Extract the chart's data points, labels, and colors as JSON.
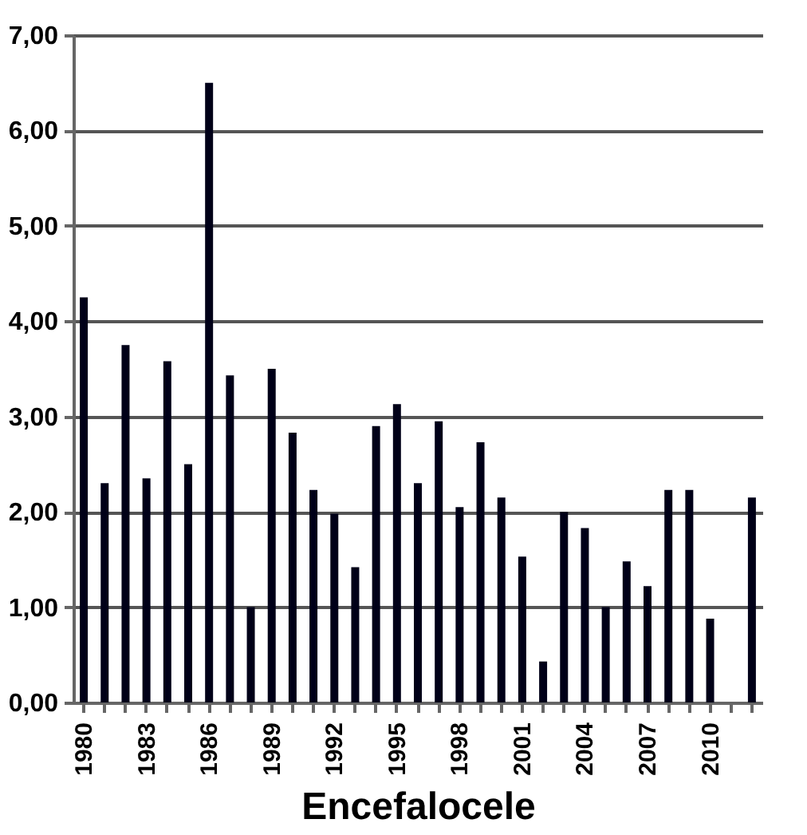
{
  "chart_data": {
    "type": "bar",
    "xlabel": "Encefalocele",
    "categories": [
      "1980",
      null,
      null,
      "1983",
      null,
      null,
      "1986",
      null,
      null,
      "1989",
      null,
      null,
      "1992",
      null,
      null,
      "1995",
      null,
      null,
      "1998",
      null,
      null,
      "2001",
      null,
      null,
      "2004",
      null,
      null,
      "2007",
      null,
      null,
      "2010",
      null,
      null
    ],
    "values": [
      4.25,
      2.3,
      3.75,
      2.35,
      3.58,
      2.5,
      6.5,
      3.43,
      1.0,
      3.5,
      2.83,
      2.23,
      1.98,
      1.42,
      2.9,
      3.13,
      2.3,
      2.95,
      2.05,
      2.73,
      2.15,
      1.53,
      0.43,
      2.0,
      1.83,
      1.0,
      1.48,
      1.22,
      2.23,
      2.23,
      0.88,
      null,
      2.15
    ],
    "color": "#000018",
    "ylim": [
      0,
      7
    ],
    "yticks": [
      {
        "value": 0,
        "label": "0,00"
      },
      {
        "value": 1,
        "label": "1,00"
      },
      {
        "value": 2,
        "label": "2,00"
      },
      {
        "value": 3,
        "label": "3,00"
      },
      {
        "value": 4,
        "label": "4,00"
      },
      {
        "value": 5,
        "label": "5,00"
      },
      {
        "value": 6,
        "label": "6,00"
      },
      {
        "value": 7,
        "label": "7,00"
      }
    ],
    "grid": "y"
  }
}
